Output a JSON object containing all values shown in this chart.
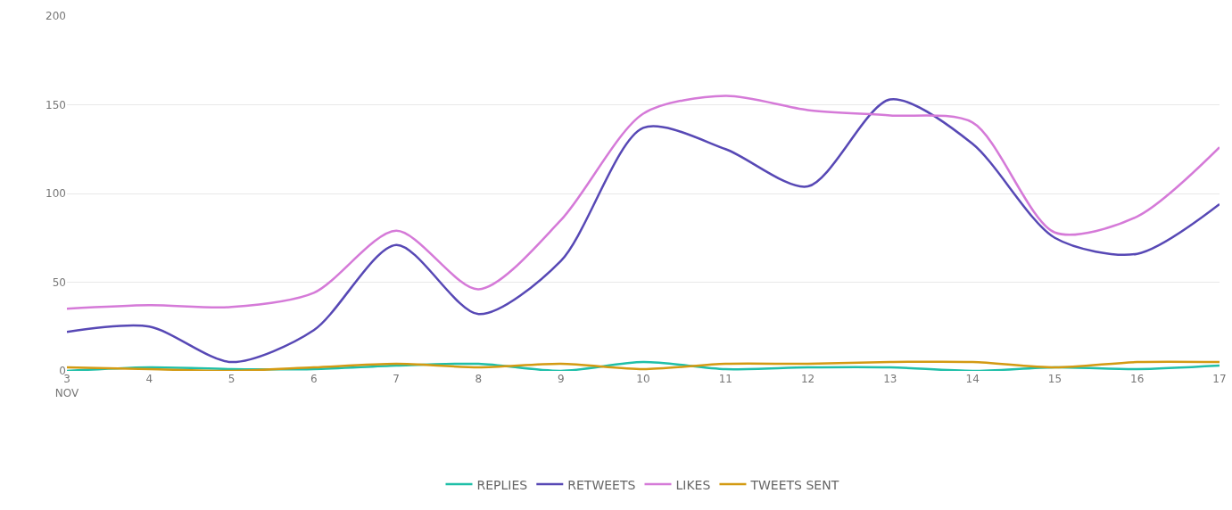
{
  "chart_data": {
    "type": "line",
    "x": [
      3,
      4,
      5,
      6,
      7,
      8,
      9,
      10,
      11,
      12,
      13,
      14,
      15,
      16,
      17
    ],
    "xlim": [
      3,
      17
    ],
    "series": [
      {
        "name": "REPLIES",
        "color": "#1fbfa8",
        "values": [
          0,
          2,
          1,
          1,
          3,
          4,
          0,
          5,
          1,
          2,
          2,
          0,
          2,
          1,
          3
        ]
      },
      {
        "name": "RETWEETS",
        "color": "#5748b5",
        "values": [
          22,
          25,
          5,
          23,
          71,
          32,
          62,
          137,
          125,
          104,
          153,
          128,
          75,
          66,
          94
        ]
      },
      {
        "name": "LIKES",
        "color": "#d57ad8",
        "values": [
          35,
          37,
          36,
          44,
          79,
          46,
          85,
          145,
          155,
          147,
          144,
          140,
          78,
          87,
          126
        ]
      },
      {
        "name": "TWEETS SENT",
        "color": "#d39a12",
        "values": [
          2,
          1,
          0,
          2,
          4,
          2,
          4,
          1,
          4,
          4,
          5,
          5,
          2,
          5,
          5
        ]
      }
    ],
    "xticks": [
      {
        "value": 3,
        "label": "3\nNOV"
      },
      4,
      5,
      6,
      7,
      8,
      9,
      10,
      11,
      12,
      13,
      14,
      15,
      16,
      17
    ],
    "ylim": [
      0,
      200
    ],
    "yticks": [
      0,
      50,
      100,
      150,
      200
    ],
    "grid": "y",
    "legend": "bottom",
    "marker": "none",
    "line_style": "solid"
  }
}
